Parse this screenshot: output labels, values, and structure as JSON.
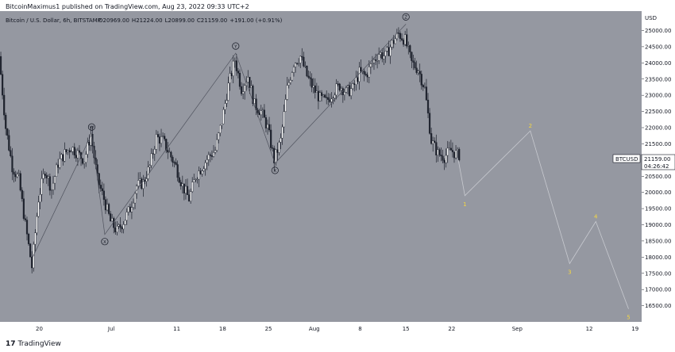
{
  "header": {
    "text": "BitcoinMaximus1 published on TradingView.com, Aug 23, 2022 09:33 UTC+2"
  },
  "footer": {
    "logo_text": "TradingView",
    "logo_mark": "17"
  },
  "symbol_info": {
    "name": "Bitcoin / U.S. Dollar, 6h, BITSTAMP",
    "open_label": "O",
    "open": "20969.00",
    "high_label": "H",
    "high": "21224.00",
    "low_label": "L",
    "low": "20899.00",
    "close_label": "C",
    "close": "21159.00",
    "change": "+191.00 (+0.91%)"
  },
  "price_tag": {
    "symbol": "BTCUSD",
    "price": "21159.00",
    "countdown": "04:26:42"
  },
  "colors": {
    "background": "#9598a1",
    "candle": "#1e222d",
    "wave_line": "#50535e",
    "projection_line": "#c8cad0",
    "projection_label": "#f5d742",
    "axis_text": "#131722",
    "header_text": "#131722"
  },
  "chart_data": {
    "type": "candlestick",
    "y_axis_label": "USD",
    "ylim": [
      16000,
      25600
    ],
    "y_ticks": [
      16500,
      17000,
      17500,
      18000,
      18500,
      19000,
      19500,
      20000,
      20500,
      21000,
      21500,
      22000,
      22500,
      23000,
      23500,
      24000,
      24500,
      25000
    ],
    "y_tick_labels": [
      "16500.00",
      "17000.00",
      "17500.00",
      "18000.00",
      "18500.00",
      "19000.00",
      "19500.00",
      "20000.00",
      "20500.00",
      "21000.00",
      "21500.00",
      "22000.00",
      "22500.00",
      "23000.00",
      "23500.00",
      "24000.00",
      "24500.00",
      "25000.00"
    ],
    "x_range": [
      "2022-06-14",
      "2022-09-20"
    ],
    "x_ticks": [
      {
        "date": "2022-06-20",
        "label": "20"
      },
      {
        "date": "2022-07-01",
        "label": "Jul"
      },
      {
        "date": "2022-07-11",
        "label": "11"
      },
      {
        "date": "2022-07-18",
        "label": "18"
      },
      {
        "date": "2022-07-25",
        "label": "25"
      },
      {
        "date": "2022-08-01",
        "label": "Aug"
      },
      {
        "date": "2022-08-08",
        "label": "8"
      },
      {
        "date": "2022-08-15",
        "label": "15"
      },
      {
        "date": "2022-08-22",
        "label": "22"
      },
      {
        "date": "2022-09-01",
        "label": "Sep"
      },
      {
        "date": "2022-09-12",
        "label": "12"
      },
      {
        "date": "2022-09-19",
        "label": "19"
      }
    ],
    "price_path": [
      [
        "2022-06-14",
        24200
      ],
      [
        "2022-06-15",
        22000
      ],
      [
        "2022-06-16",
        20800
      ],
      [
        "2022-06-17",
        20400
      ],
      [
        "2022-06-18",
        19000
      ],
      [
        "2022-06-19",
        17700
      ],
      [
        "2022-06-20",
        19800
      ],
      [
        "2022-06-21",
        20700
      ],
      [
        "2022-06-22",
        20100
      ],
      [
        "2022-06-23",
        20900
      ],
      [
        "2022-06-24",
        21200
      ],
      [
        "2022-06-25",
        21400
      ],
      [
        "2022-06-26",
        21200
      ],
      [
        "2022-06-27",
        21000
      ],
      [
        "2022-06-28",
        21800
      ],
      [
        "2022-06-29",
        20400
      ],
      [
        "2022-06-30",
        19800
      ],
      [
        "2022-07-01",
        19100
      ],
      [
        "2022-07-02",
        18800
      ],
      [
        "2022-07-03",
        19100
      ],
      [
        "2022-07-04",
        19500
      ],
      [
        "2022-07-05",
        20200
      ],
      [
        "2022-07-06",
        20300
      ],
      [
        "2022-07-07",
        20800
      ],
      [
        "2022-07-08",
        21700
      ],
      [
        "2022-07-09",
        21600
      ],
      [
        "2022-07-10",
        21200
      ],
      [
        "2022-07-11",
        20800
      ],
      [
        "2022-07-12",
        20200
      ],
      [
        "2022-07-13",
        19800
      ],
      [
        "2022-07-14",
        20500
      ],
      [
        "2022-07-15",
        20800
      ],
      [
        "2022-07-16",
        21100
      ],
      [
        "2022-07-17",
        21300
      ],
      [
        "2022-07-18",
        22200
      ],
      [
        "2022-07-19",
        23300
      ],
      [
        "2022-07-20",
        24100
      ],
      [
        "2022-07-21",
        23200
      ],
      [
        "2022-07-22",
        23600
      ],
      [
        "2022-07-23",
        22700
      ],
      [
        "2022-07-24",
        22500
      ],
      [
        "2022-07-25",
        22000
      ],
      [
        "2022-07-26",
        21000
      ],
      [
        "2022-07-27",
        21600
      ],
      [
        "2022-07-28",
        23200
      ],
      [
        "2022-07-29",
        24000
      ],
      [
        "2022-07-30",
        24200
      ],
      [
        "2022-07-31",
        23600
      ],
      [
        "2022-08-01",
        23200
      ],
      [
        "2022-08-02",
        22900
      ],
      [
        "2022-08-03",
        22800
      ],
      [
        "2022-08-04",
        23100
      ],
      [
        "2022-08-05",
        23300
      ],
      [
        "2022-08-06",
        23100
      ],
      [
        "2022-08-07",
        23200
      ],
      [
        "2022-08-08",
        23700
      ],
      [
        "2022-08-09",
        23600
      ],
      [
        "2022-08-10",
        24000
      ],
      [
        "2022-08-11",
        24300
      ],
      [
        "2022-08-12",
        24200
      ],
      [
        "2022-08-13",
        24600
      ],
      [
        "2022-08-14",
        24900
      ],
      [
        "2022-08-15",
        24700
      ],
      [
        "2022-08-16",
        24000
      ],
      [
        "2022-08-17",
        23800
      ],
      [
        "2022-08-18",
        23200
      ],
      [
        "2022-08-19",
        21600
      ],
      [
        "2022-08-20",
        21200
      ],
      [
        "2022-08-21",
        21100
      ],
      [
        "2022-08-22",
        21300
      ],
      [
        "2022-08-23",
        21159
      ]
    ],
    "wave_count": [
      {
        "date": "2022-06-19",
        "price": 18000,
        "label": ""
      },
      {
        "date": "2022-06-28",
        "price": 21800,
        "label": "W"
      },
      {
        "date": "2022-06-30",
        "price": 18700,
        "label": "X"
      },
      {
        "date": "2022-07-20",
        "price": 24300,
        "label": "Y"
      },
      {
        "date": "2022-07-26",
        "price": 20900,
        "label": "X"
      },
      {
        "date": "2022-08-15",
        "price": 25200,
        "label": "Z"
      }
    ],
    "projection": [
      {
        "date": "2022-08-23",
        "price": 21000,
        "label": ""
      },
      {
        "date": "2022-08-24",
        "price": 19900,
        "label": "1"
      },
      {
        "date": "2022-09-03",
        "price": 21900,
        "label": "2"
      },
      {
        "date": "2022-09-09",
        "price": 17800,
        "label": "3"
      },
      {
        "date": "2022-09-13",
        "price": 19100,
        "label": "4"
      },
      {
        "date": "2022-09-18",
        "price": 16400,
        "label": "5"
      }
    ]
  }
}
